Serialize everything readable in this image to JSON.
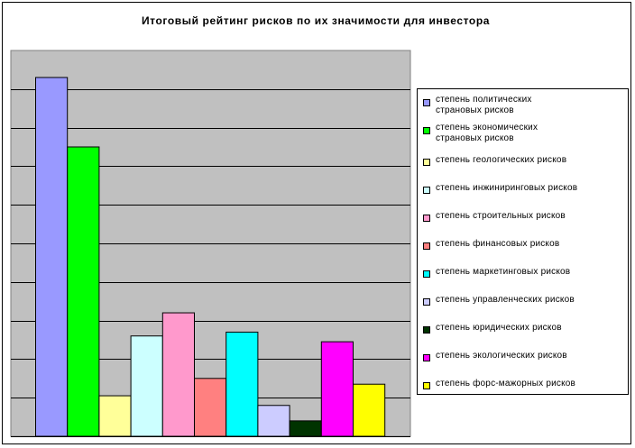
{
  "chart_data": {
    "type": "bar",
    "title": "Итоговый рейтинг рисков по их значимости для инвестора",
    "xlabel": "",
    "ylabel": "",
    "ylim": [
      0,
      10
    ],
    "grid": true,
    "y_ticks_shown": false,
    "legend_position": "right",
    "series": [
      {
        "name": "степень политических страновых рисков",
        "value": 9.3,
        "color": "#9999ff"
      },
      {
        "name": "степень экономических страновых рисков",
        "value": 7.5,
        "color": "#00ff00"
      },
      {
        "name": "степень геологических рисков",
        "value": 1.05,
        "color": "#ffff99"
      },
      {
        "name": "степень инжиниринговых рисков",
        "value": 2.6,
        "color": "#ccffff"
      },
      {
        "name": "степень строительных рисков",
        "value": 3.2,
        "color": "#ff99cc"
      },
      {
        "name": "степень финансовых рисков",
        "value": 1.5,
        "color": "#ff8080"
      },
      {
        "name": "степень маркетинговых рисков",
        "value": 2.7,
        "color": "#00ffff"
      },
      {
        "name": "степень управленческих рисков",
        "value": 0.8,
        "color": "#ccccff"
      },
      {
        "name": "степень юридических рисков",
        "value": 0.4,
        "color": "#003300"
      },
      {
        "name": "степень экологических рисков",
        "value": 2.45,
        "color": "#ff00ff"
      },
      {
        "name": "степень форс-мажорных рисков",
        "value": 1.35,
        "color": "#ffff00"
      }
    ],
    "plot_background": "#c0c0c0"
  }
}
